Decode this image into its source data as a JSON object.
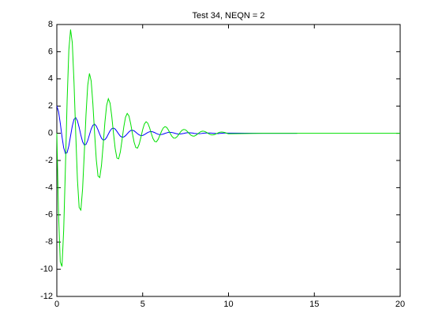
{
  "chart_data": {
    "type": "line",
    "title": "Test 34, NEQN = 2",
    "x": [
      0,
      0.1,
      0.2,
      0.3,
      0.4,
      0.5,
      0.6,
      0.7,
      0.8,
      0.9,
      1,
      1.1,
      1.2,
      1.3,
      1.4,
      1.5,
      1.6,
      1.7,
      1.8,
      1.9,
      2,
      2.1,
      2.2,
      2.3,
      2.4,
      2.5,
      2.6,
      2.7,
      2.8,
      2.9,
      3,
      3.1,
      3.2,
      3.3,
      3.4,
      3.5,
      3.6,
      3.7,
      3.8,
      3.9,
      4,
      4.1,
      4.2,
      4.3,
      4.4,
      4.5,
      4.6,
      4.7,
      4.8,
      4.9,
      5,
      5.1,
      5.2,
      5.3,
      5.4,
      5.5,
      5.6,
      5.7,
      5.8,
      5.9,
      6,
      6.1,
      6.2,
      6.3,
      6.4,
      6.5,
      6.6,
      6.7,
      6.8,
      6.9,
      7,
      7.1,
      7.2,
      7.3,
      7.4,
      7.5,
      7.6,
      7.7,
      7.8,
      7.9,
      8,
      8.1,
      8.2,
      8.3,
      8.4,
      8.5,
      8.6,
      8.7,
      8.8,
      8.9,
      9,
      9.1,
      9.2,
      9.3,
      9.4,
      9.5,
      9.6,
      9.7,
      9.8,
      9.9,
      10,
      12,
      14,
      16,
      18,
      20
    ],
    "series": [
      {
        "color": "#0000ff",
        "values": [
          2,
          1.6,
          0.752,
          -0.245,
          -1.072,
          -1.494,
          -1.422,
          -0.923,
          -0.191,
          0.53,
          1.02,
          1.15,
          0.92,
          0.43,
          -0.14,
          -0.62,
          -0.86,
          -0.82,
          -0.53,
          -0.11,
          0.31,
          0.59,
          0.67,
          0.53,
          0.25,
          -0.08,
          -0.36,
          -0.5,
          -0.47,
          -0.31,
          -0.06,
          0.18,
          0.34,
          0.38,
          0.31,
          0.14,
          -0.05,
          -0.21,
          -0.29,
          -0.27,
          -0.18,
          -0.04,
          0.1,
          0.2,
          0.22,
          0.18,
          0.08,
          -0.03,
          -0.12,
          -0.17,
          -0.16,
          -0.1,
          -0.02,
          0.06,
          0.11,
          0.13,
          0.1,
          0.05,
          -0.02,
          -0.07,
          -0.1,
          -0.09,
          -0.06,
          -0.01,
          0.03,
          0.07,
          0.07,
          0.06,
          0.03,
          -0.01,
          -0.04,
          -0.06,
          -0.05,
          -0.03,
          -0.01,
          0.02,
          0.04,
          0.04,
          0.03,
          0.02,
          -0.01,
          -0.02,
          -0.03,
          -0.03,
          -0.02,
          0,
          0.01,
          0.02,
          0.02,
          0.02,
          0.01,
          0,
          -0.01,
          -0.02,
          -0.02,
          -0.01,
          0,
          0.01,
          0.01,
          0.01,
          0.01,
          0,
          0,
          null,
          null,
          null
        ]
      },
      {
        "color": "#00e000",
        "values": [
          0,
          -5.91,
          -9.46,
          -9.8,
          -7.11,
          -2.52,
          2.4,
          6.12,
          7.63,
          6.67,
          3.77,
          0,
          -3.41,
          -5.46,
          -5.65,
          -4.1,
          -1.45,
          1.38,
          3.53,
          4.4,
          3.85,
          2.17,
          0,
          -1.97,
          -3.15,
          -3.26,
          -2.37,
          -0.84,
          0.8,
          2.04,
          2.54,
          2.22,
          1.25,
          0,
          -1.13,
          -1.82,
          -1.88,
          -1.37,
          -0.48,
          0.46,
          1.18,
          1.46,
          1.28,
          0.72,
          0,
          -0.65,
          -1.05,
          -1.09,
          -0.79,
          -0.28,
          0.27,
          0.68,
          0.85,
          0.74,
          0.42,
          0,
          -0.38,
          -0.6,
          -0.63,
          -0.45,
          -0.16,
          0.15,
          0.39,
          0.49,
          0.43,
          0.24,
          0,
          -0.22,
          -0.35,
          -0.36,
          -0.26,
          -0.09,
          0.09,
          0.23,
          0.28,
          0.25,
          0.14,
          0,
          -0.13,
          -0.2,
          -0.21,
          -0.15,
          -0.05,
          0.05,
          0.13,
          0.16,
          0.14,
          0.08,
          0,
          -0.07,
          -0.12,
          -0.12,
          -0.09,
          -0.03,
          0.03,
          0.08,
          0.09,
          0.08,
          0.05,
          0,
          -0.04,
          0,
          0,
          0,
          0,
          0
        ]
      }
    ],
    "xlim": [
      0,
      20
    ],
    "xticks": [
      0,
      5,
      10,
      15,
      20
    ],
    "ylim": [
      -12,
      8
    ],
    "yticks": [
      -12,
      -10,
      -8,
      -6,
      -4,
      -2,
      0,
      2,
      4,
      6,
      8
    ]
  }
}
